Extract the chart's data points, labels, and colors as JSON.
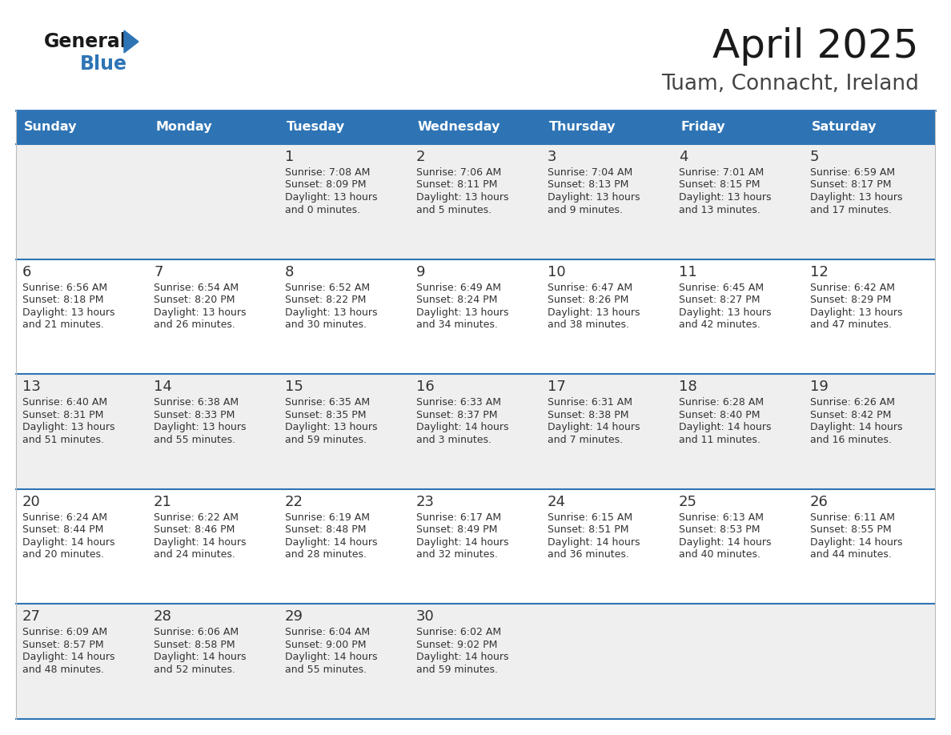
{
  "title": "April 2025",
  "subtitle": "Tuam, Connacht, Ireland",
  "header_bg": "#2E74B5",
  "header_text_color": "#FFFFFF",
  "day_names": [
    "Sunday",
    "Monday",
    "Tuesday",
    "Wednesday",
    "Thursday",
    "Friday",
    "Saturday"
  ],
  "alt_row_bg": "#EFEFEF",
  "white_bg": "#FFFFFF",
  "border_color": "#2E74B5",
  "date_color": "#333333",
  "text_color": "#333333",
  "logo_general_color": "#1a1a1a",
  "logo_blue_color": "#2E74B5",
  "calendar_data": [
    [
      {
        "day": "",
        "sunrise": "",
        "sunset": "",
        "daylight": ""
      },
      {
        "day": "",
        "sunrise": "",
        "sunset": "",
        "daylight": ""
      },
      {
        "day": "1",
        "sunrise": "Sunrise: 7:08 AM",
        "sunset": "Sunset: 8:09 PM",
        "daylight": "Daylight: 13 hours\nand 0 minutes."
      },
      {
        "day": "2",
        "sunrise": "Sunrise: 7:06 AM",
        "sunset": "Sunset: 8:11 PM",
        "daylight": "Daylight: 13 hours\nand 5 minutes."
      },
      {
        "day": "3",
        "sunrise": "Sunrise: 7:04 AM",
        "sunset": "Sunset: 8:13 PM",
        "daylight": "Daylight: 13 hours\nand 9 minutes."
      },
      {
        "day": "4",
        "sunrise": "Sunrise: 7:01 AM",
        "sunset": "Sunset: 8:15 PM",
        "daylight": "Daylight: 13 hours\nand 13 minutes."
      },
      {
        "day": "5",
        "sunrise": "Sunrise: 6:59 AM",
        "sunset": "Sunset: 8:17 PM",
        "daylight": "Daylight: 13 hours\nand 17 minutes."
      }
    ],
    [
      {
        "day": "6",
        "sunrise": "Sunrise: 6:56 AM",
        "sunset": "Sunset: 8:18 PM",
        "daylight": "Daylight: 13 hours\nand 21 minutes."
      },
      {
        "day": "7",
        "sunrise": "Sunrise: 6:54 AM",
        "sunset": "Sunset: 8:20 PM",
        "daylight": "Daylight: 13 hours\nand 26 minutes."
      },
      {
        "day": "8",
        "sunrise": "Sunrise: 6:52 AM",
        "sunset": "Sunset: 8:22 PM",
        "daylight": "Daylight: 13 hours\nand 30 minutes."
      },
      {
        "day": "9",
        "sunrise": "Sunrise: 6:49 AM",
        "sunset": "Sunset: 8:24 PM",
        "daylight": "Daylight: 13 hours\nand 34 minutes."
      },
      {
        "day": "10",
        "sunrise": "Sunrise: 6:47 AM",
        "sunset": "Sunset: 8:26 PM",
        "daylight": "Daylight: 13 hours\nand 38 minutes."
      },
      {
        "day": "11",
        "sunrise": "Sunrise: 6:45 AM",
        "sunset": "Sunset: 8:27 PM",
        "daylight": "Daylight: 13 hours\nand 42 minutes."
      },
      {
        "day": "12",
        "sunrise": "Sunrise: 6:42 AM",
        "sunset": "Sunset: 8:29 PM",
        "daylight": "Daylight: 13 hours\nand 47 minutes."
      }
    ],
    [
      {
        "day": "13",
        "sunrise": "Sunrise: 6:40 AM",
        "sunset": "Sunset: 8:31 PM",
        "daylight": "Daylight: 13 hours\nand 51 minutes."
      },
      {
        "day": "14",
        "sunrise": "Sunrise: 6:38 AM",
        "sunset": "Sunset: 8:33 PM",
        "daylight": "Daylight: 13 hours\nand 55 minutes."
      },
      {
        "day": "15",
        "sunrise": "Sunrise: 6:35 AM",
        "sunset": "Sunset: 8:35 PM",
        "daylight": "Daylight: 13 hours\nand 59 minutes."
      },
      {
        "day": "16",
        "sunrise": "Sunrise: 6:33 AM",
        "sunset": "Sunset: 8:37 PM",
        "daylight": "Daylight: 14 hours\nand 3 minutes."
      },
      {
        "day": "17",
        "sunrise": "Sunrise: 6:31 AM",
        "sunset": "Sunset: 8:38 PM",
        "daylight": "Daylight: 14 hours\nand 7 minutes."
      },
      {
        "day": "18",
        "sunrise": "Sunrise: 6:28 AM",
        "sunset": "Sunset: 8:40 PM",
        "daylight": "Daylight: 14 hours\nand 11 minutes."
      },
      {
        "day": "19",
        "sunrise": "Sunrise: 6:26 AM",
        "sunset": "Sunset: 8:42 PM",
        "daylight": "Daylight: 14 hours\nand 16 minutes."
      }
    ],
    [
      {
        "day": "20",
        "sunrise": "Sunrise: 6:24 AM",
        "sunset": "Sunset: 8:44 PM",
        "daylight": "Daylight: 14 hours\nand 20 minutes."
      },
      {
        "day": "21",
        "sunrise": "Sunrise: 6:22 AM",
        "sunset": "Sunset: 8:46 PM",
        "daylight": "Daylight: 14 hours\nand 24 minutes."
      },
      {
        "day": "22",
        "sunrise": "Sunrise: 6:19 AM",
        "sunset": "Sunset: 8:48 PM",
        "daylight": "Daylight: 14 hours\nand 28 minutes."
      },
      {
        "day": "23",
        "sunrise": "Sunrise: 6:17 AM",
        "sunset": "Sunset: 8:49 PM",
        "daylight": "Daylight: 14 hours\nand 32 minutes."
      },
      {
        "day": "24",
        "sunrise": "Sunrise: 6:15 AM",
        "sunset": "Sunset: 8:51 PM",
        "daylight": "Daylight: 14 hours\nand 36 minutes."
      },
      {
        "day": "25",
        "sunrise": "Sunrise: 6:13 AM",
        "sunset": "Sunset: 8:53 PM",
        "daylight": "Daylight: 14 hours\nand 40 minutes."
      },
      {
        "day": "26",
        "sunrise": "Sunrise: 6:11 AM",
        "sunset": "Sunset: 8:55 PM",
        "daylight": "Daylight: 14 hours\nand 44 minutes."
      }
    ],
    [
      {
        "day": "27",
        "sunrise": "Sunrise: 6:09 AM",
        "sunset": "Sunset: 8:57 PM",
        "daylight": "Daylight: 14 hours\nand 48 minutes."
      },
      {
        "day": "28",
        "sunrise": "Sunrise: 6:06 AM",
        "sunset": "Sunset: 8:58 PM",
        "daylight": "Daylight: 14 hours\nand 52 minutes."
      },
      {
        "day": "29",
        "sunrise": "Sunrise: 6:04 AM",
        "sunset": "Sunset: 9:00 PM",
        "daylight": "Daylight: 14 hours\nand 55 minutes."
      },
      {
        "day": "30",
        "sunrise": "Sunrise: 6:02 AM",
        "sunset": "Sunset: 9:02 PM",
        "daylight": "Daylight: 14 hours\nand 59 minutes."
      },
      {
        "day": "",
        "sunrise": "",
        "sunset": "",
        "daylight": ""
      },
      {
        "day": "",
        "sunrise": "",
        "sunset": "",
        "daylight": ""
      },
      {
        "day": "",
        "sunrise": "",
        "sunset": "",
        "daylight": ""
      }
    ]
  ]
}
